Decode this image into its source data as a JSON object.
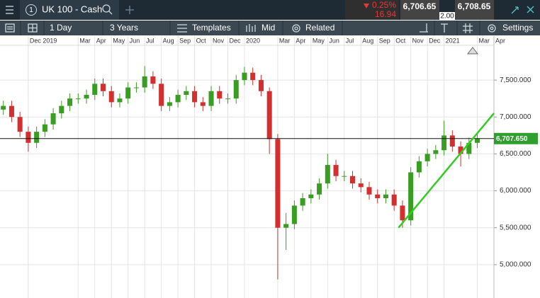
{
  "toolbar": {
    "instrument_number": "1",
    "instrument": "UK 100 - Cash",
    "change_percent": "0.25%",
    "change_points": "16.94",
    "sell": "6,706.65",
    "spread": "2.00",
    "buy": "6,708.65",
    "interval": "1 Day",
    "range": "3 Years",
    "templates": "Templates",
    "price_type": "Mid",
    "related": "Related",
    "settings": "Settings"
  },
  "chart_data": {
    "type": "candlestick",
    "x": [
      -1.5,
      -1,
      -0.5,
      0,
      0.5,
      1,
      1.5,
      2,
      2.5,
      3,
      3.5,
      4,
      4.5,
      5,
      5.5,
      6,
      6.5,
      7,
      7.5,
      8,
      8.5,
      9,
      9.5,
      10,
      10.5,
      11,
      11.5,
      12,
      12.5,
      13,
      13.5,
      14,
      14.5,
      15,
      15.5,
      16,
      16.5,
      17,
      17.5,
      18,
      18.5,
      19,
      19.5,
      20,
      20.5,
      21,
      21.5,
      22,
      22.5,
      23,
      23.5,
      24,
      24.5,
      25,
      25.5,
      26,
      26.5,
      27
    ],
    "open": [
      7100,
      7150,
      7000,
      6800,
      6650,
      6800,
      6900,
      7050,
      7150,
      7250,
      7250,
      7300,
      7450,
      7350,
      7200,
      7250,
      7400,
      7400,
      7550,
      7450,
      7150,
      7200,
      7300,
      7350,
      7200,
      7150,
      7350,
      7250,
      7250,
      7500,
      7600,
      7500,
      7350,
      6700,
      5500,
      5550,
      5800,
      5900,
      5950,
      6100,
      6350,
      6200,
      6200,
      6100,
      6050,
      5950,
      5900,
      5950,
      5800,
      5600,
      6250,
      6400,
      6500,
      6550,
      6750,
      6600,
      6500,
      6650
    ],
    "high": [
      7220,
      7220,
      7070,
      6870,
      6870,
      6970,
      7120,
      7220,
      7320,
      7320,
      7370,
      7520,
      7520,
      7420,
      7320,
      7470,
      7470,
      7690,
      7620,
      7520,
      7270,
      7370,
      7420,
      7420,
      7270,
      7420,
      7420,
      7320,
      7570,
      7680,
      7670,
      7570,
      7400,
      6770,
      5700,
      5870,
      5970,
      6020,
      6170,
      6500,
      6420,
      6270,
      6270,
      6170,
      6120,
      6020,
      6020,
      6020,
      5870,
      6320,
      6470,
      6570,
      6620,
      6950,
      6820,
      6670,
      6720,
      6780
    ],
    "low": [
      7030,
      6930,
      6730,
      6530,
      6580,
      6730,
      6830,
      6980,
      7080,
      7180,
      7180,
      7230,
      7280,
      7130,
      7130,
      7180,
      7330,
      7330,
      7380,
      7080,
      7080,
      7130,
      7230,
      7130,
      7080,
      7080,
      7180,
      7180,
      7180,
      7430,
      7430,
      7280,
      6500,
      4800,
      5200,
      5480,
      5730,
      5830,
      5880,
      6030,
      6130,
      6130,
      6030,
      5980,
      5880,
      5830,
      5830,
      5730,
      5500,
      5530,
      6180,
      6330,
      6430,
      6480,
      6530,
      6330,
      6430,
      6580
    ],
    "close": [
      7150,
      7000,
      6800,
      6650,
      6800,
      6900,
      7050,
      7150,
      7250,
      7250,
      7300,
      7450,
      7350,
      7200,
      7250,
      7400,
      7400,
      7550,
      7450,
      7150,
      7200,
      7300,
      7350,
      7200,
      7150,
      7350,
      7250,
      7250,
      7500,
      7600,
      7500,
      7350,
      6700,
      5500,
      5550,
      5800,
      5900,
      5950,
      6100,
      6350,
      6200,
      6200,
      6100,
      6050,
      5950,
      5900,
      5950,
      5800,
      5600,
      6250,
      6400,
      6500,
      6550,
      6750,
      6600,
      6500,
      6650,
      6710
    ],
    "up_color": "#3a9d23",
    "down_color": "#d32f2f",
    "xlim": [
      -1.7,
      28
    ],
    "xticks": [
      {
        "value": 0,
        "label": "Dec 2019"
      },
      {
        "value": 3,
        "label": "Mar"
      },
      {
        "value": 4,
        "label": "Apr"
      },
      {
        "value": 5,
        "label": "May"
      },
      {
        "value": 6,
        "label": "Jun"
      },
      {
        "value": 7,
        "label": "Jul"
      },
      {
        "value": 8,
        "label": "Aug"
      },
      {
        "value": 9,
        "label": "Sep"
      },
      {
        "value": 10,
        "label": "Oct"
      },
      {
        "value": 11,
        "label": "Nov"
      },
      {
        "value": 12,
        "label": "Dec"
      },
      {
        "value": 13,
        "label": "2020"
      },
      {
        "value": 15,
        "label": "Mar"
      },
      {
        "value": 16,
        "label": "Apr"
      },
      {
        "value": 17,
        "label": "May"
      },
      {
        "value": 18,
        "label": "Jun"
      },
      {
        "value": 19,
        "label": "Jul"
      },
      {
        "value": 20,
        "label": "Aug"
      },
      {
        "value": 21,
        "label": "Sep"
      },
      {
        "value": 22,
        "label": "Oct"
      },
      {
        "value": 23,
        "label": "Nov"
      },
      {
        "value": 24,
        "label": "Dec"
      },
      {
        "value": 25,
        "label": "2021"
      },
      {
        "value": 27,
        "label": "Mar"
      },
      {
        "value": 28,
        "label": "Apr"
      }
    ],
    "ylim": [
      4548,
      7971
    ],
    "yticks": [
      {
        "value": 5000,
        "label": "5,000.000"
      },
      {
        "value": 5500,
        "label": "5,500.000"
      },
      {
        "value": 6000,
        "label": "6,000.000"
      },
      {
        "value": 6500,
        "label": "6,500.000"
      },
      {
        "value": 7000,
        "label": "7,000.000"
      },
      {
        "value": 7500,
        "label": "7,500.000"
      }
    ],
    "grid": true,
    "last_price": {
      "value": 6707.65,
      "label": "6,707.650",
      "color": "#2e9e2e"
    },
    "trendline": {
      "x": [
        22.26,
        28
      ],
      "y": [
        5500,
        7050
      ],
      "color": "#33cc22"
    }
  }
}
